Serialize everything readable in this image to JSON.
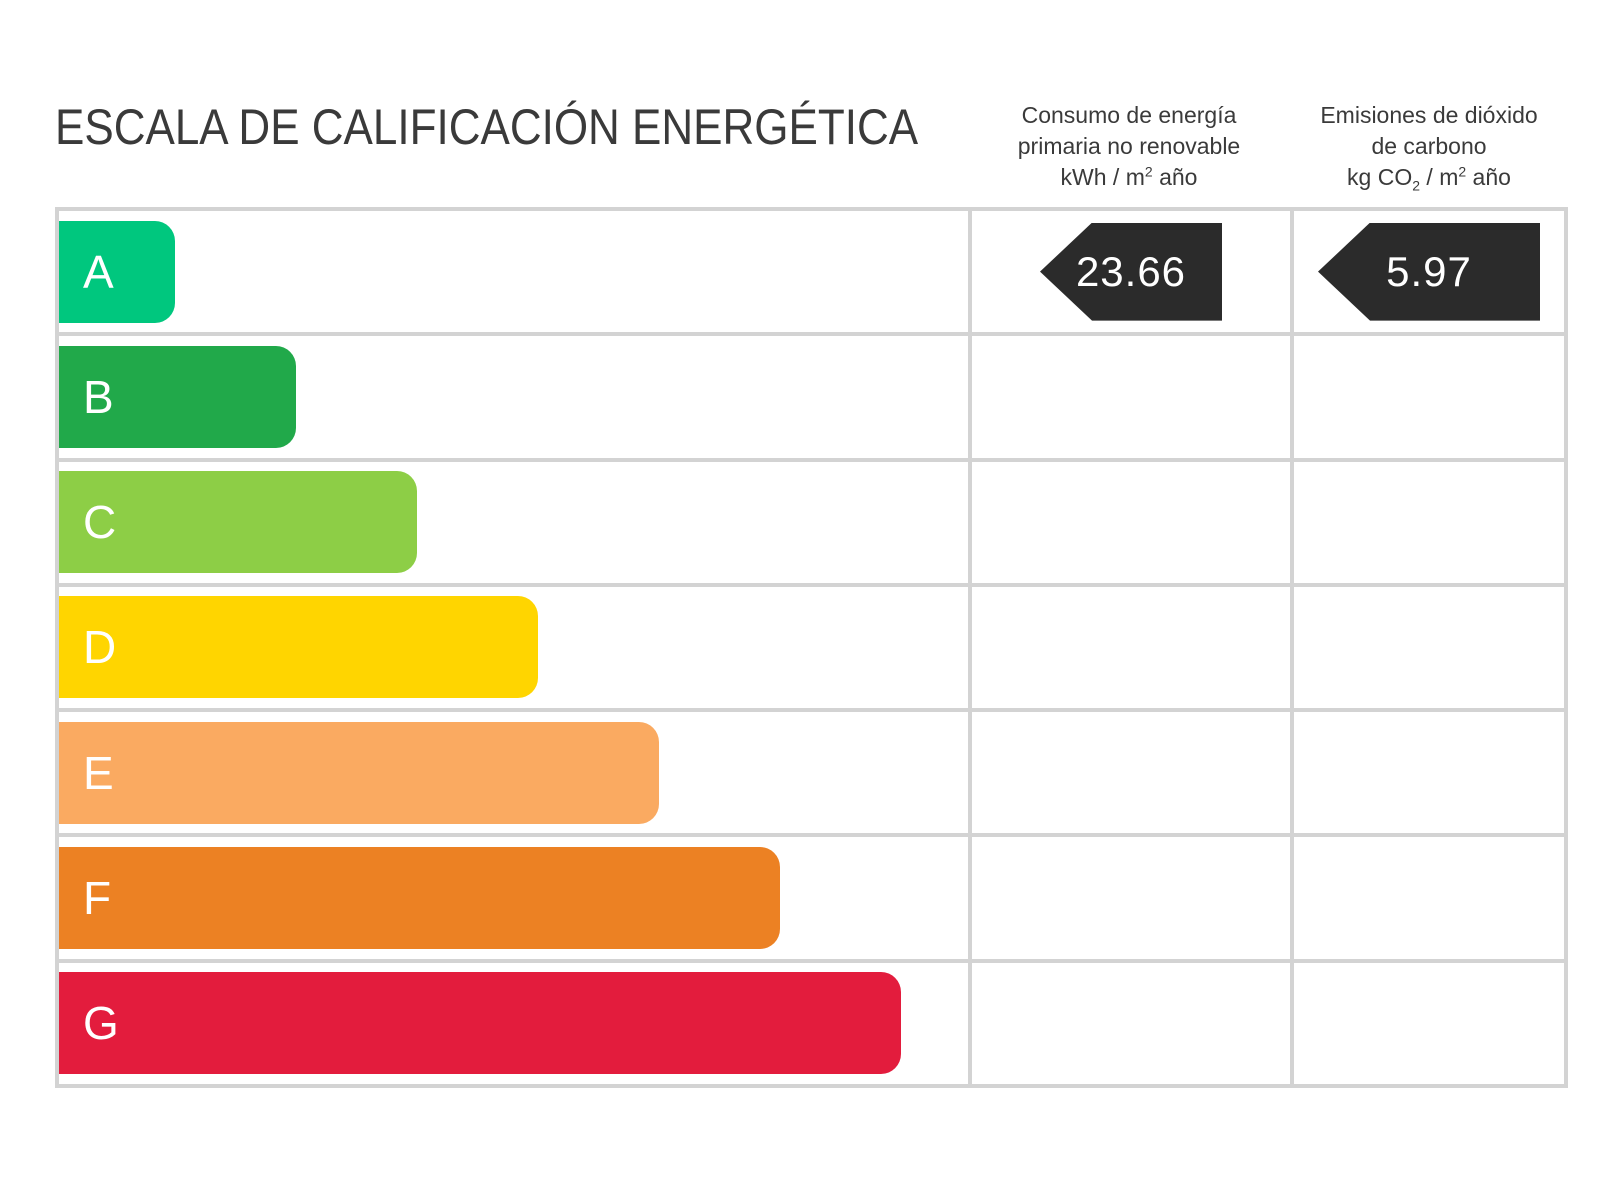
{
  "title": "ESCALA DE CALIFICACIÓN ENERGÉTICA",
  "colors": {
    "grid_line": "#d3d3d3",
    "text": "#3a3a3a",
    "badge_background": "#2b2b2b",
    "badge_text": "#ffffff",
    "band_letter_text": "#ffffff"
  },
  "columns": {
    "consumption": {
      "line1": "Consumo de energía",
      "line2": "primaria no renovable",
      "unit_part1": "kWh / m",
      "unit_sup": "2",
      "unit_part2": " año"
    },
    "emissions": {
      "line1": "Emisiones de dióxido",
      "line2": "de carbono",
      "unit_part1": "kg CO",
      "unit_sub": "2",
      "unit_part2": " / m",
      "unit_sup": "2",
      "unit_part3": " año"
    }
  },
  "scale": {
    "bands": [
      {
        "letter": "A",
        "color": "#00c77e",
        "style": "width:116px;background:#00c77e"
      },
      {
        "letter": "B",
        "color": "#21a94a",
        "style": "width:237px;background:#21a94a"
      },
      {
        "letter": "C",
        "color": "#8dce46",
        "style": "width:358px;background:#8dce46"
      },
      {
        "letter": "D",
        "color": "#ffd500",
        "style": "width:479px;background:#ffd500"
      },
      {
        "letter": "E",
        "color": "#faaa61",
        "style": "width:600px;background:#faaa61"
      },
      {
        "letter": "F",
        "color": "#ec8123",
        "style": "width:721px;background:#ec8123"
      },
      {
        "letter": "G",
        "color": "#e31c3d",
        "style": "width:842px;background:#e31c3d"
      }
    ]
  },
  "ratings": {
    "rated_letter": "A",
    "consumption_value": "23.66",
    "consumption_badge_style": "width:182px",
    "emissions_value": "5.97",
    "emissions_badge_style": "width:222px"
  },
  "chart_data": {
    "type": "bar",
    "title": "ESCALA DE CALIFICACIÓN ENERGÉTICA",
    "categories": [
      "A",
      "B",
      "C",
      "D",
      "E",
      "F",
      "G"
    ],
    "values": [
      116,
      237,
      358,
      479,
      600,
      721,
      842
    ],
    "values_note": "bar lengths in px; fixed legend scale increasing linearly from A to G",
    "band_colors": [
      "#00c77e",
      "#21a94a",
      "#8dce46",
      "#ffd500",
      "#faaa61",
      "#ec8123",
      "#e31c3d"
    ],
    "rated_band": "A",
    "consumo_energia_primaria_no_renovable_kwh_m2_ano": 23.66,
    "emisiones_dioxido_carbono_kg_co2_m2_ano": 5.97,
    "xlabel": "",
    "ylabel": "",
    "legend_position": "none",
    "grid": true
  }
}
